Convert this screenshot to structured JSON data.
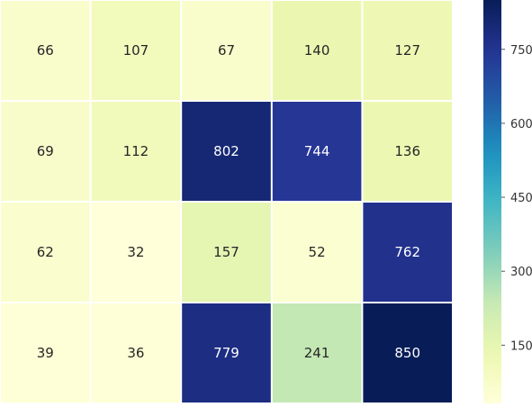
{
  "chart_data": {
    "type": "heatmap",
    "title": "",
    "xlabel": "",
    "ylabel": "",
    "rows": 4,
    "cols": 5,
    "values": [
      [
        66,
        107,
        67,
        140,
        127
      ],
      [
        69,
        112,
        802,
        744,
        136
      ],
      [
        62,
        32,
        157,
        52,
        762
      ],
      [
        39,
        36,
        779,
        241,
        850
      ]
    ],
    "colormap": "YlGnBu",
    "vmin": 32,
    "vmax": 850,
    "colorbar": {
      "ticks": [
        150,
        300,
        450,
        600,
        750
      ]
    },
    "annotate": true,
    "cell_gap_color": "#ffffff"
  }
}
